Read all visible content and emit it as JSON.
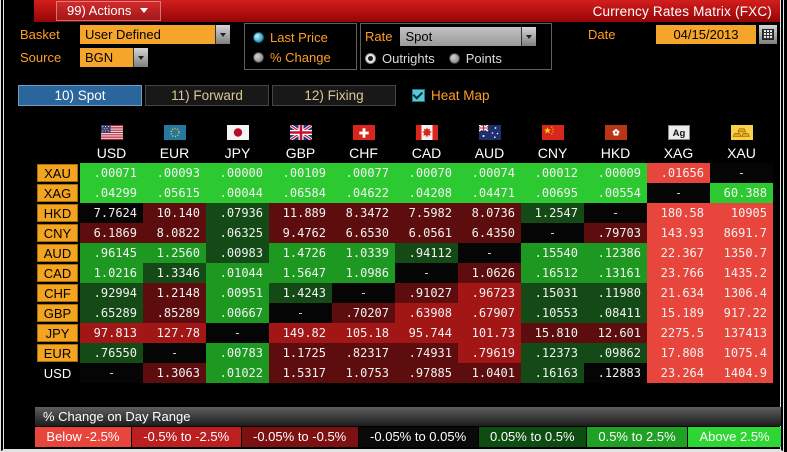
{
  "titlebar": {
    "actions": "99) Actions",
    "title": "Currency Rates Matrix (FXC)"
  },
  "controls": {
    "basket": {
      "label": "Basket",
      "value": "User Defined"
    },
    "source": {
      "label": "Source",
      "value": "BGN"
    },
    "price_mode": {
      "options": [
        {
          "label": "Last Price",
          "selected": true
        },
        {
          "label": "% Change",
          "selected": false
        }
      ]
    },
    "rate": {
      "label": "Rate",
      "value": "Spot",
      "options": [
        {
          "label": "Outrights",
          "selected": true
        },
        {
          "label": "Points",
          "selected": false
        }
      ]
    },
    "date": {
      "label": "Date",
      "value": "04/15/2013"
    }
  },
  "tabs": [
    {
      "label": "10) Spot",
      "active": true
    },
    {
      "label": "11) Forward",
      "active": false
    },
    {
      "label": "12) Fixing",
      "active": false
    }
  ],
  "heat_map": {
    "label": "Heat Map",
    "checked": true
  },
  "matrix": {
    "columns": [
      {
        "code": "USD",
        "icon": "us-flag-icon"
      },
      {
        "code": "EUR",
        "icon": "eu-flag-icon"
      },
      {
        "code": "JPY",
        "icon": "japan-flag-icon"
      },
      {
        "code": "GBP",
        "icon": "uk-flag-icon"
      },
      {
        "code": "CHF",
        "icon": "switzerland-flag-icon"
      },
      {
        "code": "CAD",
        "icon": "canada-flag-icon"
      },
      {
        "code": "AUD",
        "icon": "australia-flag-icon"
      },
      {
        "code": "CNY",
        "icon": "china-flag-icon"
      },
      {
        "code": "HKD",
        "icon": "hong-kong-flag-icon"
      },
      {
        "code": "XAG",
        "icon": "silver-icon"
      },
      {
        "code": "XAU",
        "icon": "gold-icon"
      }
    ],
    "rows": [
      {
        "label": "XAU",
        "highlighted": true,
        "cells": [
          {
            "v": ".00071",
            "c": "G3"
          },
          {
            "v": ".00093",
            "c": "G3"
          },
          {
            "v": ".00000",
            "c": "G3"
          },
          {
            "v": ".00109",
            "c": "G3"
          },
          {
            "v": ".00077",
            "c": "G3"
          },
          {
            "v": ".00070",
            "c": "G3"
          },
          {
            "v": ".00074",
            "c": "G3"
          },
          {
            "v": ".00012",
            "c": "G3"
          },
          {
            "v": ".00009",
            "c": "G3"
          },
          {
            "v": ".01656",
            "c": "R3"
          },
          {
            "v": "-",
            "c": "K"
          }
        ]
      },
      {
        "label": "XAG",
        "highlighted": true,
        "cells": [
          {
            "v": ".04299",
            "c": "G3"
          },
          {
            "v": ".05615",
            "c": "G3"
          },
          {
            "v": ".00044",
            "c": "G3"
          },
          {
            "v": ".06584",
            "c": "G3"
          },
          {
            "v": ".04622",
            "c": "G3"
          },
          {
            "v": ".04208",
            "c": "G3"
          },
          {
            "v": ".04471",
            "c": "G3"
          },
          {
            "v": ".00695",
            "c": "G3"
          },
          {
            "v": ".00554",
            "c": "G3"
          },
          {
            "v": "-",
            "c": "K"
          },
          {
            "v": "60.388",
            "c": "G3"
          }
        ]
      },
      {
        "label": "HKD",
        "highlighted": true,
        "cells": [
          {
            "v": "7.7624",
            "c": "K"
          },
          {
            "v": "10.140",
            "c": "R1"
          },
          {
            "v": ".07936",
            "c": "G1"
          },
          {
            "v": "11.889",
            "c": "R1"
          },
          {
            "v": "8.3472",
            "c": "R1"
          },
          {
            "v": "7.5982",
            "c": "R1"
          },
          {
            "v": "8.0736",
            "c": "R1"
          },
          {
            "v": "1.2547",
            "c": "G1"
          },
          {
            "v": "-",
            "c": "K"
          },
          {
            "v": "180.58",
            "c": "R3"
          },
          {
            "v": "10905",
            "c": "R3"
          }
        ]
      },
      {
        "label": "CNY",
        "highlighted": true,
        "cells": [
          {
            "v": "6.1869",
            "c": "R1"
          },
          {
            "v": "8.0822",
            "c": "R1"
          },
          {
            "v": ".06325",
            "c": "G1"
          },
          {
            "v": "9.4762",
            "c": "R1"
          },
          {
            "v": "6.6530",
            "c": "R1"
          },
          {
            "v": "6.0561",
            "c": "R1"
          },
          {
            "v": "6.4350",
            "c": "R1"
          },
          {
            "v": "-",
            "c": "K"
          },
          {
            "v": ".79703",
            "c": "R1"
          },
          {
            "v": "143.93",
            "c": "R3"
          },
          {
            "v": "8691.7",
            "c": "R3"
          }
        ]
      },
      {
        "label": "AUD",
        "highlighted": true,
        "cells": [
          {
            "v": ".96145",
            "c": "G2"
          },
          {
            "v": "1.2560",
            "c": "G2"
          },
          {
            "v": ".00983",
            "c": "G1"
          },
          {
            "v": "1.4726",
            "c": "G2"
          },
          {
            "v": "1.0339",
            "c": "G2"
          },
          {
            "v": ".94112",
            "c": "G1"
          },
          {
            "v": "-",
            "c": "K"
          },
          {
            "v": ".15540",
            "c": "G2"
          },
          {
            "v": ".12386",
            "c": "G2"
          },
          {
            "v": "22.367",
            "c": "R3"
          },
          {
            "v": "1350.7",
            "c": "R3"
          }
        ]
      },
      {
        "label": "CAD",
        "highlighted": true,
        "cells": [
          {
            "v": "1.0216",
            "c": "G2"
          },
          {
            "v": "1.3346",
            "c": "G1"
          },
          {
            "v": ".01044",
            "c": "G2"
          },
          {
            "v": "1.5647",
            "c": "G2"
          },
          {
            "v": "1.0986",
            "c": "G2"
          },
          {
            "v": "-",
            "c": "K"
          },
          {
            "v": "1.0626",
            "c": "R1"
          },
          {
            "v": ".16512",
            "c": "G2"
          },
          {
            "v": ".13161",
            "c": "G2"
          },
          {
            "v": "23.766",
            "c": "R3"
          },
          {
            "v": "1435.2",
            "c": "R3"
          }
        ]
      },
      {
        "label": "CHF",
        "highlighted": true,
        "cells": [
          {
            "v": ".92994",
            "c": "G1"
          },
          {
            "v": "1.2148",
            "c": "R1"
          },
          {
            "v": ".00951",
            "c": "G2"
          },
          {
            "v": "1.4243",
            "c": "G1"
          },
          {
            "v": "-",
            "c": "K"
          },
          {
            "v": ".91027",
            "c": "R1"
          },
          {
            "v": ".96723",
            "c": "R2"
          },
          {
            "v": ".15031",
            "c": "G1"
          },
          {
            "v": ".11980",
            "c": "G1"
          },
          {
            "v": "21.634",
            "c": "R3"
          },
          {
            "v": "1306.4",
            "c": "R3"
          }
        ]
      },
      {
        "label": "GBP",
        "highlighted": true,
        "cells": [
          {
            "v": ".65289",
            "c": "G1"
          },
          {
            "v": ".85289",
            "c": "R1"
          },
          {
            "v": ".00667",
            "c": "G2"
          },
          {
            "v": "-",
            "c": "K"
          },
          {
            "v": ".70207",
            "c": "R1"
          },
          {
            "v": ".63908",
            "c": "R2"
          },
          {
            "v": ".67907",
            "c": "R2"
          },
          {
            "v": ".10553",
            "c": "G1"
          },
          {
            "v": ".08411",
            "c": "G1"
          },
          {
            "v": "15.189",
            "c": "R3"
          },
          {
            "v": "917.22",
            "c": "R3"
          }
        ]
      },
      {
        "label": "JPY",
        "highlighted": true,
        "cells": [
          {
            "v": "97.813",
            "c": "R2"
          },
          {
            "v": "127.78",
            "c": "R2"
          },
          {
            "v": "-",
            "c": "K"
          },
          {
            "v": "149.82",
            "c": "R2"
          },
          {
            "v": "105.18",
            "c": "R2"
          },
          {
            "v": "95.744",
            "c": "R2"
          },
          {
            "v": "101.73",
            "c": "R2"
          },
          {
            "v": "15.810",
            "c": "R1"
          },
          {
            "v": "12.601",
            "c": "R1"
          },
          {
            "v": "2275.5",
            "c": "R3"
          },
          {
            "v": "137413",
            "c": "R3"
          }
        ]
      },
      {
        "label": "EUR",
        "highlighted": true,
        "cells": [
          {
            "v": ".76550",
            "c": "G1"
          },
          {
            "v": "-",
            "c": "K"
          },
          {
            "v": ".00783",
            "c": "G2"
          },
          {
            "v": "1.1725",
            "c": "R1"
          },
          {
            "v": ".82317",
            "c": "R1"
          },
          {
            "v": ".74931",
            "c": "R1"
          },
          {
            "v": ".79619",
            "c": "R2"
          },
          {
            "v": ".12373",
            "c": "G1"
          },
          {
            "v": ".09862",
            "c": "G1"
          },
          {
            "v": "17.808",
            "c": "R3"
          },
          {
            "v": "1075.4",
            "c": "R3"
          }
        ]
      },
      {
        "label": "USD",
        "highlighted": false,
        "cells": [
          {
            "v": "-",
            "c": "K"
          },
          {
            "v": "1.3063",
            "c": "R1"
          },
          {
            "v": ".01022",
            "c": "G2"
          },
          {
            "v": "1.5317",
            "c": "R1"
          },
          {
            "v": "1.0753",
            "c": "R1"
          },
          {
            "v": ".97885",
            "c": "R1"
          },
          {
            "v": "1.0401",
            "c": "R1"
          },
          {
            "v": ".16163",
            "c": "G1"
          },
          {
            "v": ".12883",
            "c": "K"
          },
          {
            "v": "23.264",
            "c": "R3"
          },
          {
            "v": "1404.9",
            "c": "R3"
          }
        ]
      }
    ]
  },
  "legend": {
    "title": "% Change on Day Range",
    "items": [
      {
        "label": "Below -2.5%",
        "color": "#e8463c"
      },
      {
        "label": "-0.5% to -2.5%",
        "color": "#bc1f1f"
      },
      {
        "label": "-0.05% to -0.5%",
        "color": "#7d1111"
      },
      {
        "label": "-0.05% to 0.05%",
        "color": "#0a0a0a"
      },
      {
        "label": "0.05% to 0.5%",
        "color": "#0e4d12"
      },
      {
        "label": "0.5% to 2.5%",
        "color": "#1fa124"
      },
      {
        "label": "Above 2.5%",
        "color": "#2ed633"
      }
    ]
  },
  "heat_colors": {
    "G3": "#2cc930",
    "G2": "#1d9922",
    "G1": "#134a15",
    "K": "#050505",
    "R1": "#5d0d0d",
    "R2": "#a31616",
    "R3": "#e8463c"
  },
  "colors": {
    "titlebar_red": "#c01414",
    "label_orange": "#ff9e24",
    "field_orange": "#f5a529",
    "tab_active_blue": "#2a659c",
    "checkbox_cyan": "#56c8d8"
  }
}
